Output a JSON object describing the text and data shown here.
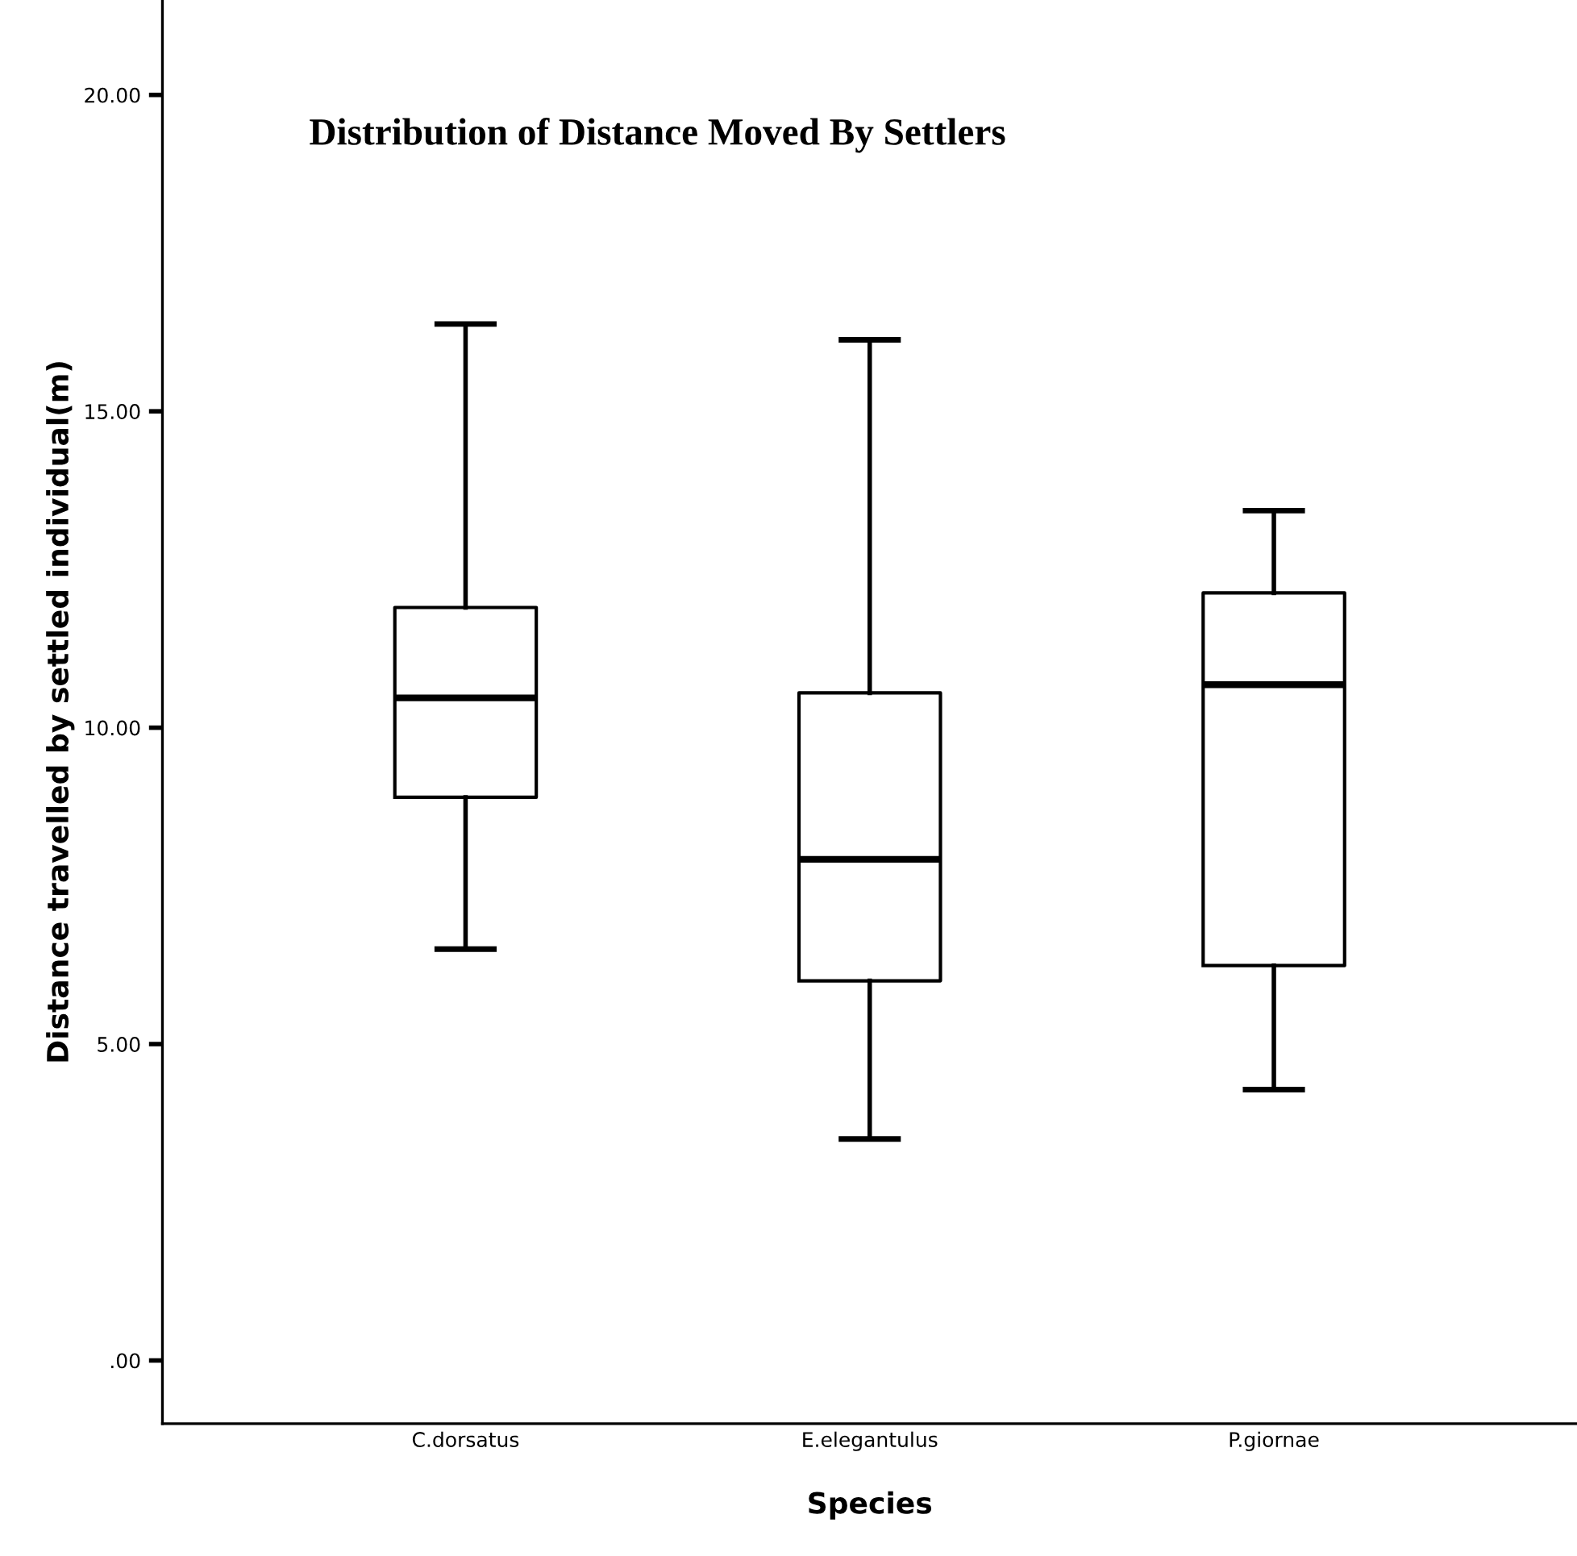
{
  "chart_data": {
    "type": "box",
    "title": "Distribution of Distance Moved By Settlers",
    "xlabel": "Species",
    "ylabel": "Distance travelled by settled individual(m)",
    "categories": [
      "C.dorsatus",
      "E.elegantulus",
      "P.giornae"
    ],
    "boxes": [
      {
        "low": 6.5,
        "q1": 8.9,
        "median": 10.47,
        "q3": 11.9,
        "high": 16.38
      },
      {
        "low": 3.5,
        "q1": 6.0,
        "median": 7.92,
        "q3": 10.55,
        "high": 16.13
      },
      {
        "low": 4.28,
        "q1": 6.24,
        "median": 10.68,
        "q3": 12.13,
        "high": 13.43
      }
    ],
    "ylim": [
      -1,
      21.5
    ],
    "yticks": [
      {
        "value": 0,
        "label": ".00"
      },
      {
        "value": 5,
        "label": "5.00"
      },
      {
        "value": 10,
        "label": "10.00"
      },
      {
        "value": 15,
        "label": "15.00"
      },
      {
        "value": 20,
        "label": "20.00"
      }
    ],
    "grid": false,
    "legend": false
  }
}
